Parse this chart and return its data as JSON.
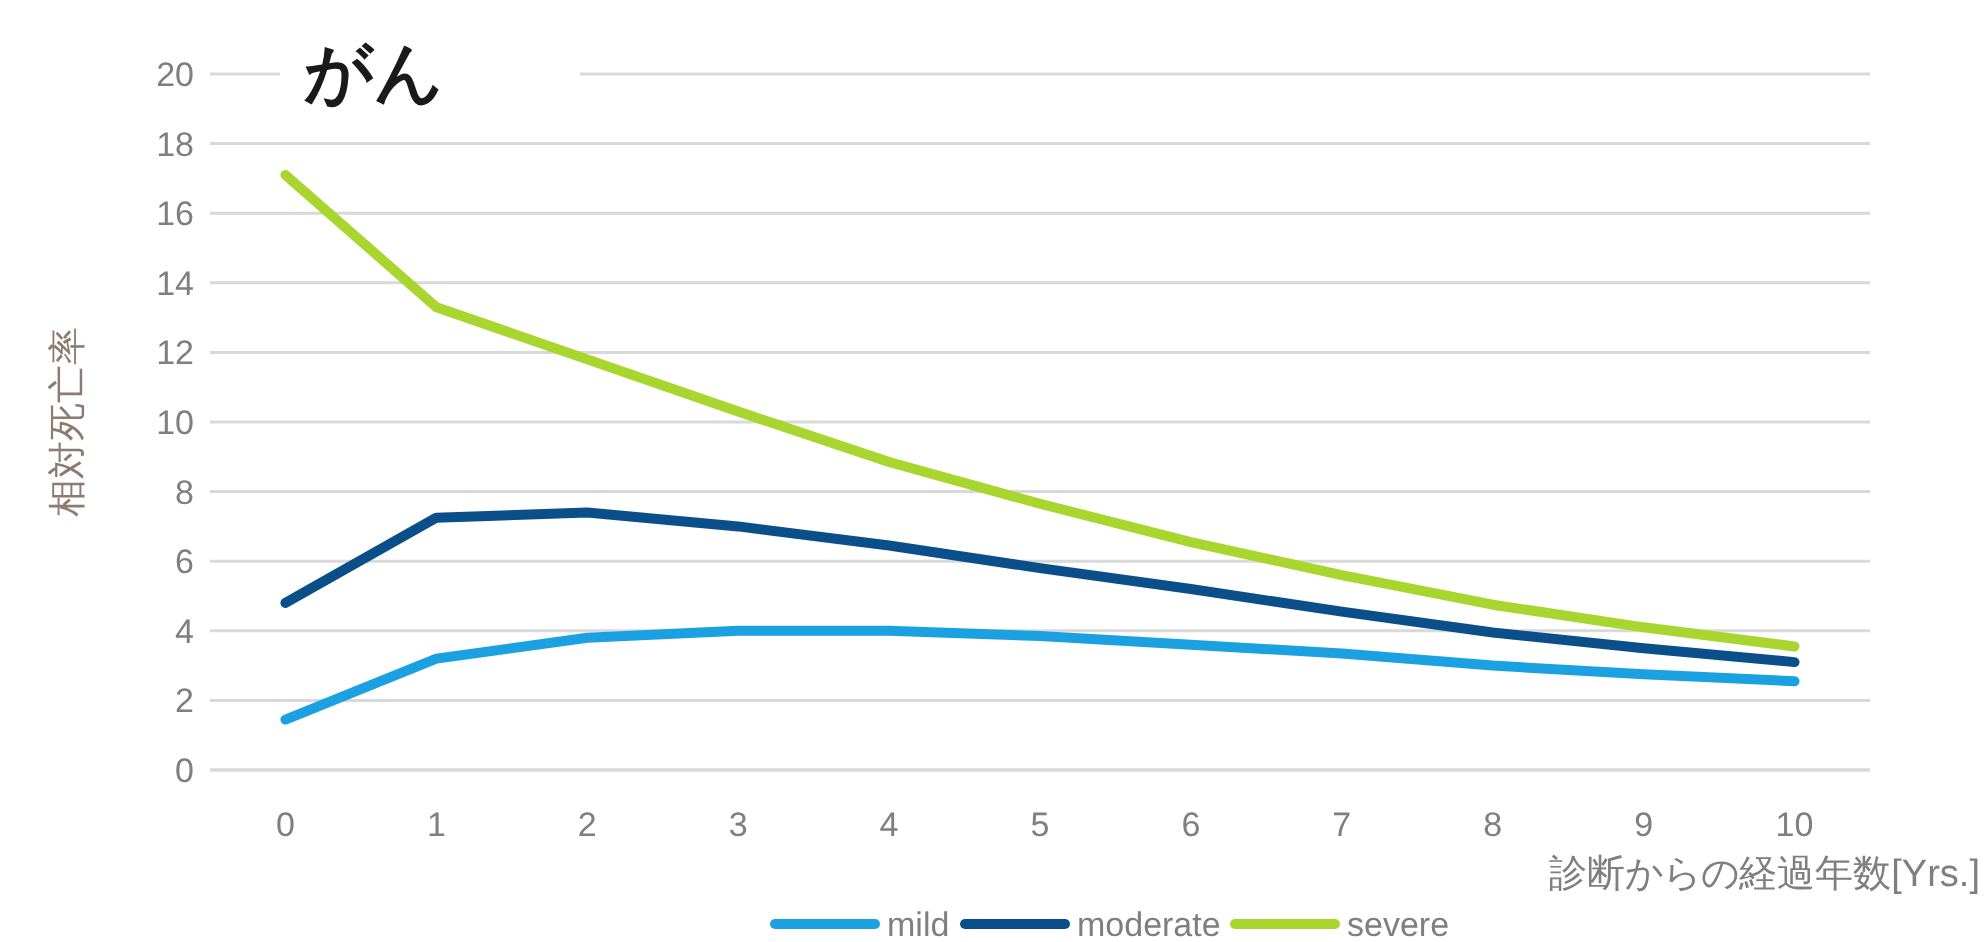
{
  "chart_data": {
    "type": "line",
    "title": "がん",
    "ylabel": "相対死亡率",
    "xlabel": "診断からの経過年数[Yrs.]",
    "categories": [
      "0",
      "1",
      "2",
      "3",
      "4",
      "5",
      "6",
      "7",
      "8",
      "9",
      "10"
    ],
    "series": [
      {
        "name": "mild",
        "color": "#1ba1e2",
        "values": [
          1.45,
          3.2,
          3.8,
          4.0,
          4.0,
          3.85,
          3.6,
          3.35,
          3.0,
          2.75,
          2.55
        ]
      },
      {
        "name": "moderate",
        "color": "#0b4f8a",
        "values": [
          4.8,
          7.25,
          7.4,
          7.0,
          6.45,
          5.8,
          5.2,
          4.55,
          3.95,
          3.5,
          3.1
        ]
      },
      {
        "name": "severe",
        "color": "#a8d62e",
        "values": [
          17.1,
          13.3,
          11.8,
          10.3,
          8.85,
          7.65,
          6.55,
          5.6,
          4.75,
          4.1,
          3.55
        ]
      }
    ],
    "ylim": [
      0,
      20
    ],
    "yticks": [
      0,
      2,
      4,
      6,
      8,
      10,
      12,
      14,
      16,
      18,
      20
    ],
    "grid": "y",
    "legend": "bottom"
  }
}
